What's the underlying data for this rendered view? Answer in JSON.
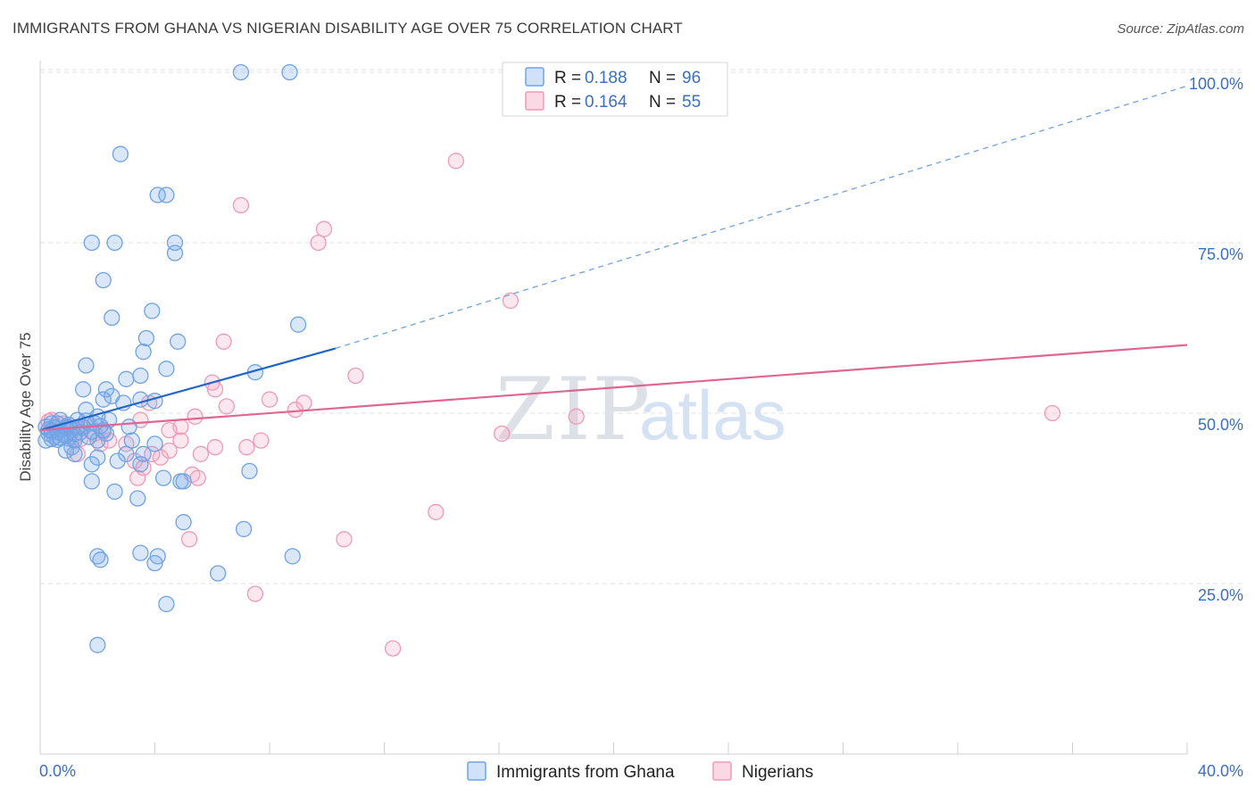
{
  "title": "IMMIGRANTS FROM GHANA VS NIGERIAN DISABILITY AGE OVER 75 CORRELATION CHART",
  "source": "Source: ZipAtlas.com",
  "watermark": {
    "part1": "ZIP",
    "part2": "atlas"
  },
  "colors": {
    "blue": "#6fa3e6",
    "blue_fill": "rgba(120,170,235,0.28)",
    "blue_line": "#2266cc",
    "pink": "#ef9ab7",
    "pink_fill": "rgba(245,170,195,0.28)",
    "pink_line": "#e06690",
    "grid": "#e2e2e2",
    "tick_label": "#3a6fc4"
  },
  "legend": {
    "series": [
      {
        "r_label": "R = ",
        "r_value": "0.188",
        "n_label": "N = ",
        "n_value": "96"
      },
      {
        "r_label": "R = ",
        "r_value": "0.164",
        "n_label": "N = ",
        "n_value": "55"
      }
    ]
  },
  "chart_data": {
    "type": "scatter",
    "title": "IMMIGRANTS FROM GHANA VS NIGERIAN DISABILITY AGE OVER 75 CORRELATION CHART",
    "xlabel": "",
    "ylabel": "Disability Age Over 75",
    "xlim": [
      0,
      40
    ],
    "ylim": [
      0,
      102
    ],
    "x_tick_labels": [
      "0.0%",
      "40.0%"
    ],
    "y_tick_labels": [
      "25.0%",
      "50.0%",
      "75.0%",
      "100.0%"
    ],
    "y_ticks": [
      25,
      50,
      75,
      100
    ],
    "grid": true,
    "legend_position": "top-center",
    "series": [
      {
        "name": "Immigrants from Ghana",
        "color": "#6fa3e6",
        "trend": {
          "x": [
            0,
            10.3
          ],
          "y": [
            47.5,
            59.5
          ],
          "extended_to": [
            40,
            98
          ]
        },
        "points": [
          [
            7.0,
            100
          ],
          [
            8.7,
            100
          ],
          [
            2.8,
            88
          ],
          [
            4.1,
            82
          ],
          [
            4.4,
            82
          ],
          [
            1.8,
            75
          ],
          [
            2.6,
            75
          ],
          [
            4.7,
            75
          ],
          [
            4.7,
            73.5
          ],
          [
            2.2,
            69.5
          ],
          [
            2.5,
            64
          ],
          [
            3.9,
            65
          ],
          [
            9.0,
            63
          ],
          [
            3.7,
            61
          ],
          [
            4.8,
            60.5
          ],
          [
            3.6,
            59
          ],
          [
            1.6,
            57
          ],
          [
            4.4,
            56.5
          ],
          [
            3.0,
            55
          ],
          [
            7.5,
            56
          ],
          [
            3.5,
            55.5
          ],
          [
            1.5,
            53.5
          ],
          [
            2.3,
            53.5
          ],
          [
            2.5,
            52.5
          ],
          [
            2.2,
            52
          ],
          [
            3.5,
            52
          ],
          [
            4.0,
            51.8
          ],
          [
            2.9,
            51.5
          ],
          [
            1.6,
            50.5
          ],
          [
            2.0,
            49.5
          ],
          [
            2.4,
            49
          ],
          [
            1.3,
            49
          ],
          [
            0.7,
            49
          ],
          [
            1.9,
            48.5
          ],
          [
            0.4,
            48.5
          ],
          [
            3.1,
            48
          ],
          [
            0.9,
            48
          ],
          [
            1.5,
            48
          ],
          [
            0.2,
            48
          ],
          [
            2.2,
            47.5
          ],
          [
            1.1,
            47.5
          ],
          [
            0.6,
            47.2
          ],
          [
            0.3,
            47
          ],
          [
            0.8,
            46.8
          ],
          [
            0.5,
            46.5
          ],
          [
            1.7,
            46.5
          ],
          [
            1.0,
            46.3
          ],
          [
            0.4,
            46.2
          ],
          [
            1.2,
            46
          ],
          [
            2.0,
            46
          ],
          [
            0.2,
            46
          ],
          [
            3.2,
            46
          ],
          [
            4.0,
            45.5
          ],
          [
            1.1,
            45
          ],
          [
            0.9,
            44.5
          ],
          [
            3.0,
            44
          ],
          [
            3.6,
            44
          ],
          [
            1.2,
            44
          ],
          [
            2.0,
            43.5
          ],
          [
            2.7,
            43
          ],
          [
            3.5,
            42.5
          ],
          [
            1.8,
            42.5
          ],
          [
            4.3,
            40.5
          ],
          [
            4.9,
            40
          ],
          [
            5.0,
            40
          ],
          [
            7.3,
            41.5
          ],
          [
            1.8,
            40
          ],
          [
            2.6,
            38.5
          ],
          [
            3.4,
            37.5
          ],
          [
            5.0,
            34
          ],
          [
            7.1,
            33
          ],
          [
            3.5,
            29.5
          ],
          [
            2.0,
            29
          ],
          [
            2.1,
            28.5
          ],
          [
            4.0,
            28
          ],
          [
            4.1,
            29
          ],
          [
            8.8,
            29
          ],
          [
            6.2,
            26.5
          ],
          [
            4.4,
            22
          ],
          [
            2.0,
            16
          ],
          [
            0.6,
            48.5
          ],
          [
            0.9,
            47.8
          ],
          [
            1.4,
            47.2
          ],
          [
            2.3,
            47
          ],
          [
            0.3,
            47.6
          ],
          [
            0.6,
            46.1
          ],
          [
            1.3,
            47.9
          ],
          [
            0.9,
            46.7
          ],
          [
            1.6,
            48.9
          ],
          [
            0.5,
            47.9
          ],
          [
            1.8,
            47.3
          ],
          [
            1.0,
            48.3
          ],
          [
            0.7,
            46.4
          ],
          [
            2.1,
            48.1
          ],
          [
            0.4,
            47.4
          ],
          [
            1.2,
            46.9
          ]
        ]
      },
      {
        "name": "Nigerians",
        "color": "#ef9ab7",
        "trend": {
          "x": [
            0,
            40
          ],
          "y": [
            47.5,
            60
          ]
        },
        "points": [
          [
            14.5,
            87
          ],
          [
            7.0,
            80.5
          ],
          [
            9.9,
            77
          ],
          [
            9.7,
            75
          ],
          [
            16.4,
            66.5
          ],
          [
            6.4,
            60.5
          ],
          [
            11.0,
            55.5
          ],
          [
            6.0,
            54.5
          ],
          [
            6.1,
            53.5
          ],
          [
            8.0,
            52
          ],
          [
            9.2,
            51.5
          ],
          [
            6.5,
            51
          ],
          [
            3.8,
            51.5
          ],
          [
            8.9,
            50.5
          ],
          [
            18.7,
            49.5
          ],
          [
            35.3,
            50
          ],
          [
            5.4,
            49.5
          ],
          [
            3.5,
            49
          ],
          [
            4.9,
            48
          ],
          [
            4.5,
            47.5
          ],
          [
            16.1,
            47
          ],
          [
            7.7,
            46
          ],
          [
            4.9,
            46
          ],
          [
            3.0,
            45.5
          ],
          [
            7.2,
            45
          ],
          [
            6.1,
            45
          ],
          [
            2.1,
            45.5
          ],
          [
            4.5,
            44.5
          ],
          [
            3.9,
            44
          ],
          [
            5.6,
            44
          ],
          [
            3.3,
            43
          ],
          [
            4.2,
            43.5
          ],
          [
            1.3,
            44
          ],
          [
            3.6,
            42
          ],
          [
            5.3,
            41
          ],
          [
            5.5,
            40.5
          ],
          [
            3.4,
            40.5
          ],
          [
            13.8,
            35.5
          ],
          [
            5.2,
            31.5
          ],
          [
            10.6,
            31.5
          ],
          [
            7.5,
            23.5
          ],
          [
            12.3,
            15.5
          ],
          [
            0.4,
            49
          ],
          [
            0.8,
            48.5
          ],
          [
            1.0,
            48
          ],
          [
            1.5,
            47.8
          ],
          [
            0.6,
            47.5
          ],
          [
            1.9,
            47
          ],
          [
            1.2,
            46.5
          ],
          [
            2.4,
            46
          ],
          [
            0.3,
            48.8
          ],
          [
            1.7,
            48.4
          ],
          [
            2.2,
            47.3
          ],
          [
            0.9,
            46.9
          ],
          [
            1.4,
            46.2
          ]
        ]
      }
    ]
  }
}
